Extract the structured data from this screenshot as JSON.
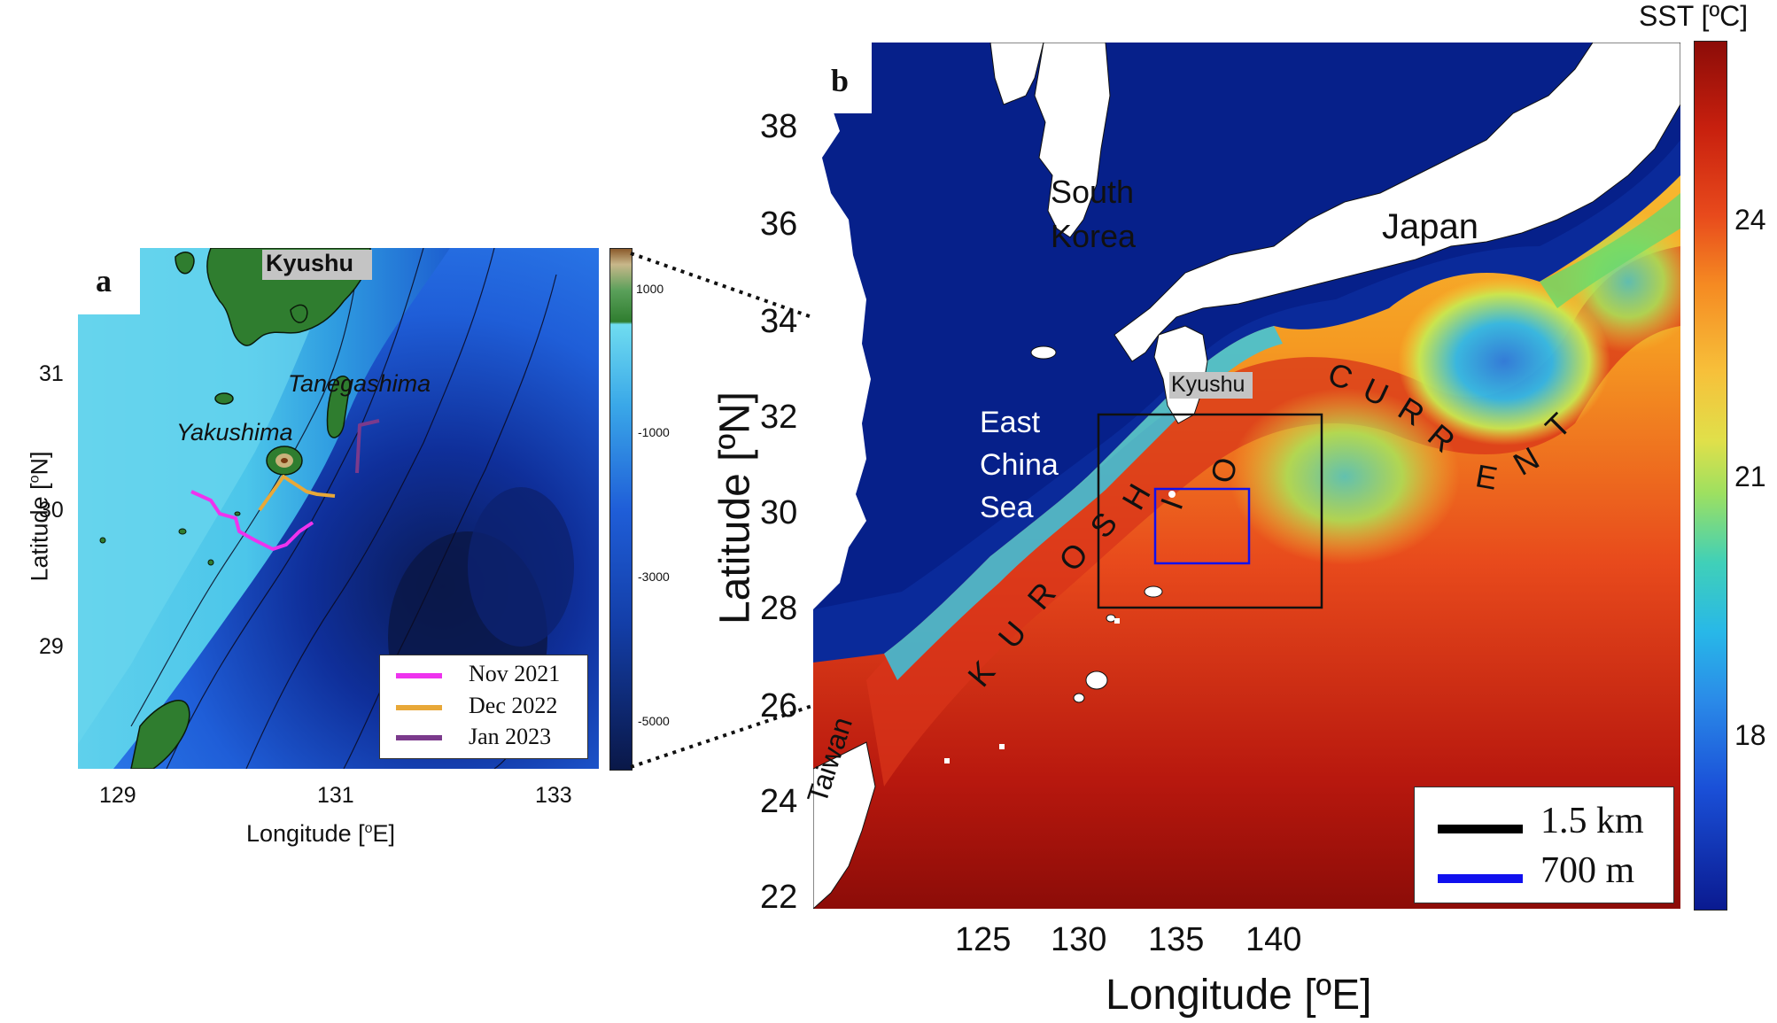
{
  "panel_a": {
    "letter": "a",
    "place_labels": {
      "kyushu": "Kyushu",
      "tanegashima": "Tanegashima",
      "yakushima": "Yakushima"
    },
    "x_ticks": [
      "129",
      "131",
      "133"
    ],
    "y_ticks": [
      "31",
      "30",
      "29"
    ],
    "x_label": "Longitude [",
    "x_label_sup": "o",
    "x_label_end": "E]",
    "y_label": "Latitude [",
    "y_label_sup": "o",
    "y_label_end": "N]",
    "colorbar_ticks": [
      "1000",
      "-1000",
      "-3000",
      "-5000"
    ],
    "legend": [
      {
        "label": "Nov 2021",
        "color": "#ee33ee"
      },
      {
        "label": "Dec 2022",
        "color": "#e8a838"
      },
      {
        "label": "Jan 2023",
        "color": "#7b3a8c"
      }
    ]
  },
  "panel_b": {
    "letter": "b",
    "colorbar_title": "SST [ºC]",
    "colorbar_ticks": [
      "24",
      "21",
      "18"
    ],
    "x_ticks": [
      "125",
      "130",
      "135",
      "140"
    ],
    "y_ticks": [
      "38",
      "36",
      "34",
      "32",
      "30",
      "28",
      "26",
      "24",
      "22"
    ],
    "x_label": "Longitude [ºE]",
    "y_label": "Latitude [ºN]",
    "place_labels": {
      "south_korea_1": "South",
      "south_korea_2": "Korea",
      "japan": "Japan",
      "kyushu": "Kyushu",
      "ecs_1": "East",
      "ecs_2": "China",
      "ecs_3": "Sea",
      "taiwan": "Taiwan"
    },
    "current_letters": [
      "K",
      "U",
      "R",
      "O",
      "S",
      "H",
      "I",
      "O",
      "C",
      "U",
      "R",
      "R",
      "E",
      "N",
      "T"
    ],
    "legend": [
      {
        "label": "1.5 km",
        "color": "#000000"
      },
      {
        "label": "700 m",
        "color": "#1010ee"
      }
    ]
  }
}
